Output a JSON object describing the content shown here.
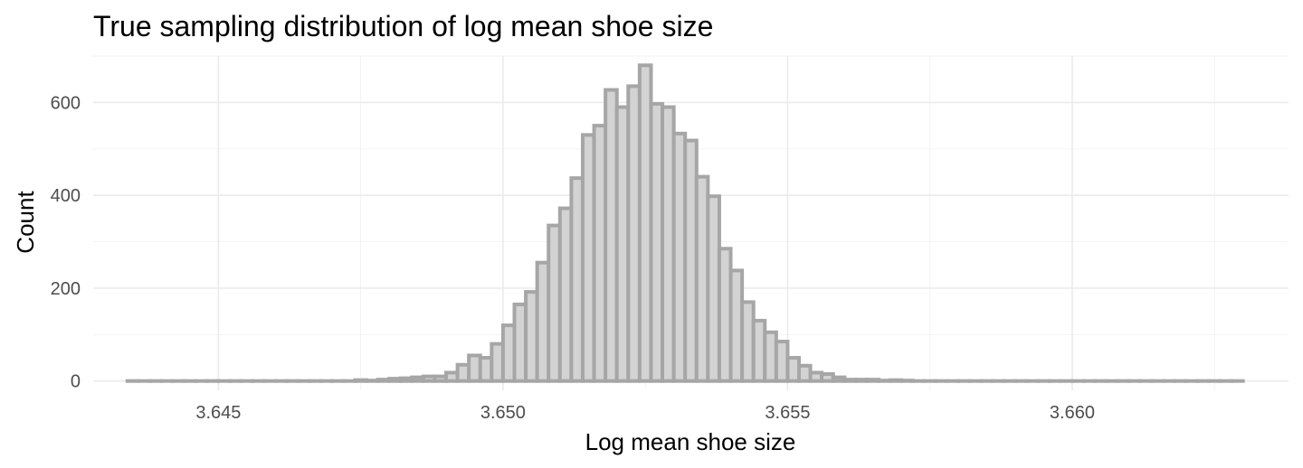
{
  "chart_data": {
    "type": "bar",
    "title": "True sampling distribution of log mean shoe size",
    "xlabel": "Log mean shoe size",
    "ylabel": "Count",
    "xlim": [
      3.6428,
      3.6638
    ],
    "ylim": [
      -20,
      700
    ],
    "x_ticks": [
      3.645,
      3.65,
      3.655,
      3.66
    ],
    "x_tick_labels": [
      "3.645",
      "3.650",
      "3.655",
      "3.660"
    ],
    "y_ticks": [
      0,
      200,
      400,
      600
    ],
    "y_tick_labels": [
      "0",
      "200",
      "400",
      "600"
    ],
    "grid": true,
    "bin_width": 0.0002,
    "bins": [
      {
        "x": 3.6435,
        "count": 0
      },
      {
        "x": 3.6437,
        "count": 0
      },
      {
        "x": 3.6439,
        "count": 0
      },
      {
        "x": 3.6441,
        "count": 0
      },
      {
        "x": 3.6443,
        "count": 0
      },
      {
        "x": 3.6445,
        "count": 0
      },
      {
        "x": 3.6447,
        "count": 0
      },
      {
        "x": 3.6449,
        "count": 0
      },
      {
        "x": 3.6451,
        "count": 0
      },
      {
        "x": 3.6453,
        "count": 0
      },
      {
        "x": 3.6455,
        "count": 0
      },
      {
        "x": 3.6457,
        "count": 0
      },
      {
        "x": 3.6459,
        "count": 0
      },
      {
        "x": 3.6461,
        "count": 0
      },
      {
        "x": 3.6463,
        "count": 0
      },
      {
        "x": 3.6465,
        "count": 0
      },
      {
        "x": 3.6467,
        "count": 0
      },
      {
        "x": 3.6469,
        "count": 0
      },
      {
        "x": 3.6471,
        "count": 0
      },
      {
        "x": 3.6473,
        "count": 0
      },
      {
        "x": 3.6475,
        "count": 2
      },
      {
        "x": 3.6477,
        "count": 1
      },
      {
        "x": 3.6479,
        "count": 3
      },
      {
        "x": 3.6481,
        "count": 5
      },
      {
        "x": 3.6483,
        "count": 6
      },
      {
        "x": 3.6485,
        "count": 8
      },
      {
        "x": 3.6487,
        "count": 10
      },
      {
        "x": 3.6489,
        "count": 10
      },
      {
        "x": 3.6491,
        "count": 18
      },
      {
        "x": 3.6493,
        "count": 35
      },
      {
        "x": 3.6495,
        "count": 55
      },
      {
        "x": 3.6497,
        "count": 50
      },
      {
        "x": 3.6499,
        "count": 80
      },
      {
        "x": 3.6501,
        "count": 120
      },
      {
        "x": 3.6503,
        "count": 165
      },
      {
        "x": 3.6505,
        "count": 192
      },
      {
        "x": 3.6507,
        "count": 255
      },
      {
        "x": 3.6509,
        "count": 335
      },
      {
        "x": 3.6511,
        "count": 372
      },
      {
        "x": 3.6513,
        "count": 437
      },
      {
        "x": 3.6515,
        "count": 530
      },
      {
        "x": 3.6517,
        "count": 550
      },
      {
        "x": 3.6519,
        "count": 627
      },
      {
        "x": 3.6521,
        "count": 590
      },
      {
        "x": 3.6523,
        "count": 635
      },
      {
        "x": 3.6525,
        "count": 680
      },
      {
        "x": 3.6527,
        "count": 597
      },
      {
        "x": 3.6529,
        "count": 590
      },
      {
        "x": 3.6531,
        "count": 533
      },
      {
        "x": 3.6533,
        "count": 518
      },
      {
        "x": 3.6535,
        "count": 440
      },
      {
        "x": 3.6537,
        "count": 398
      },
      {
        "x": 3.6539,
        "count": 285
      },
      {
        "x": 3.6541,
        "count": 238
      },
      {
        "x": 3.6543,
        "count": 170
      },
      {
        "x": 3.6545,
        "count": 130
      },
      {
        "x": 3.6547,
        "count": 105
      },
      {
        "x": 3.6549,
        "count": 85
      },
      {
        "x": 3.6551,
        "count": 50
      },
      {
        "x": 3.6553,
        "count": 33
      },
      {
        "x": 3.6555,
        "count": 18
      },
      {
        "x": 3.6557,
        "count": 15
      },
      {
        "x": 3.6559,
        "count": 8
      },
      {
        "x": 3.6561,
        "count": 3
      },
      {
        "x": 3.6563,
        "count": 3
      },
      {
        "x": 3.6565,
        "count": 3
      },
      {
        "x": 3.6567,
        "count": 1
      },
      {
        "x": 3.6569,
        "count": 2
      },
      {
        "x": 3.6571,
        "count": 1
      },
      {
        "x": 3.6573,
        "count": 0
      },
      {
        "x": 3.6575,
        "count": 0
      },
      {
        "x": 3.6577,
        "count": 0
      },
      {
        "x": 3.6579,
        "count": 0
      },
      {
        "x": 3.6581,
        "count": 0
      },
      {
        "x": 3.6583,
        "count": 0
      },
      {
        "x": 3.6585,
        "count": 0
      },
      {
        "x": 3.6587,
        "count": 0
      },
      {
        "x": 3.6589,
        "count": 0
      },
      {
        "x": 3.6591,
        "count": 0
      },
      {
        "x": 3.6593,
        "count": 0
      },
      {
        "x": 3.6595,
        "count": 0
      },
      {
        "x": 3.6597,
        "count": 0
      },
      {
        "x": 3.6599,
        "count": 0
      },
      {
        "x": 3.6601,
        "count": 0
      },
      {
        "x": 3.6603,
        "count": 0
      },
      {
        "x": 3.6605,
        "count": 0
      },
      {
        "x": 3.6607,
        "count": 0
      },
      {
        "x": 3.6609,
        "count": 0
      },
      {
        "x": 3.6611,
        "count": 0
      },
      {
        "x": 3.6613,
        "count": 0
      },
      {
        "x": 3.6615,
        "count": 0
      },
      {
        "x": 3.6617,
        "count": 0
      },
      {
        "x": 3.6619,
        "count": 0
      },
      {
        "x": 3.6621,
        "count": 0
      },
      {
        "x": 3.6623,
        "count": 0
      },
      {
        "x": 3.6625,
        "count": 0
      },
      {
        "x": 3.6627,
        "count": 0
      },
      {
        "x": 3.6629,
        "count": 0
      }
    ],
    "colors": {
      "bar_fill": "#d3d3d3",
      "bar_outline": "#a6a6a6",
      "grid_major": "#ebebeb",
      "grid_minor": "#f2f2f2"
    }
  }
}
